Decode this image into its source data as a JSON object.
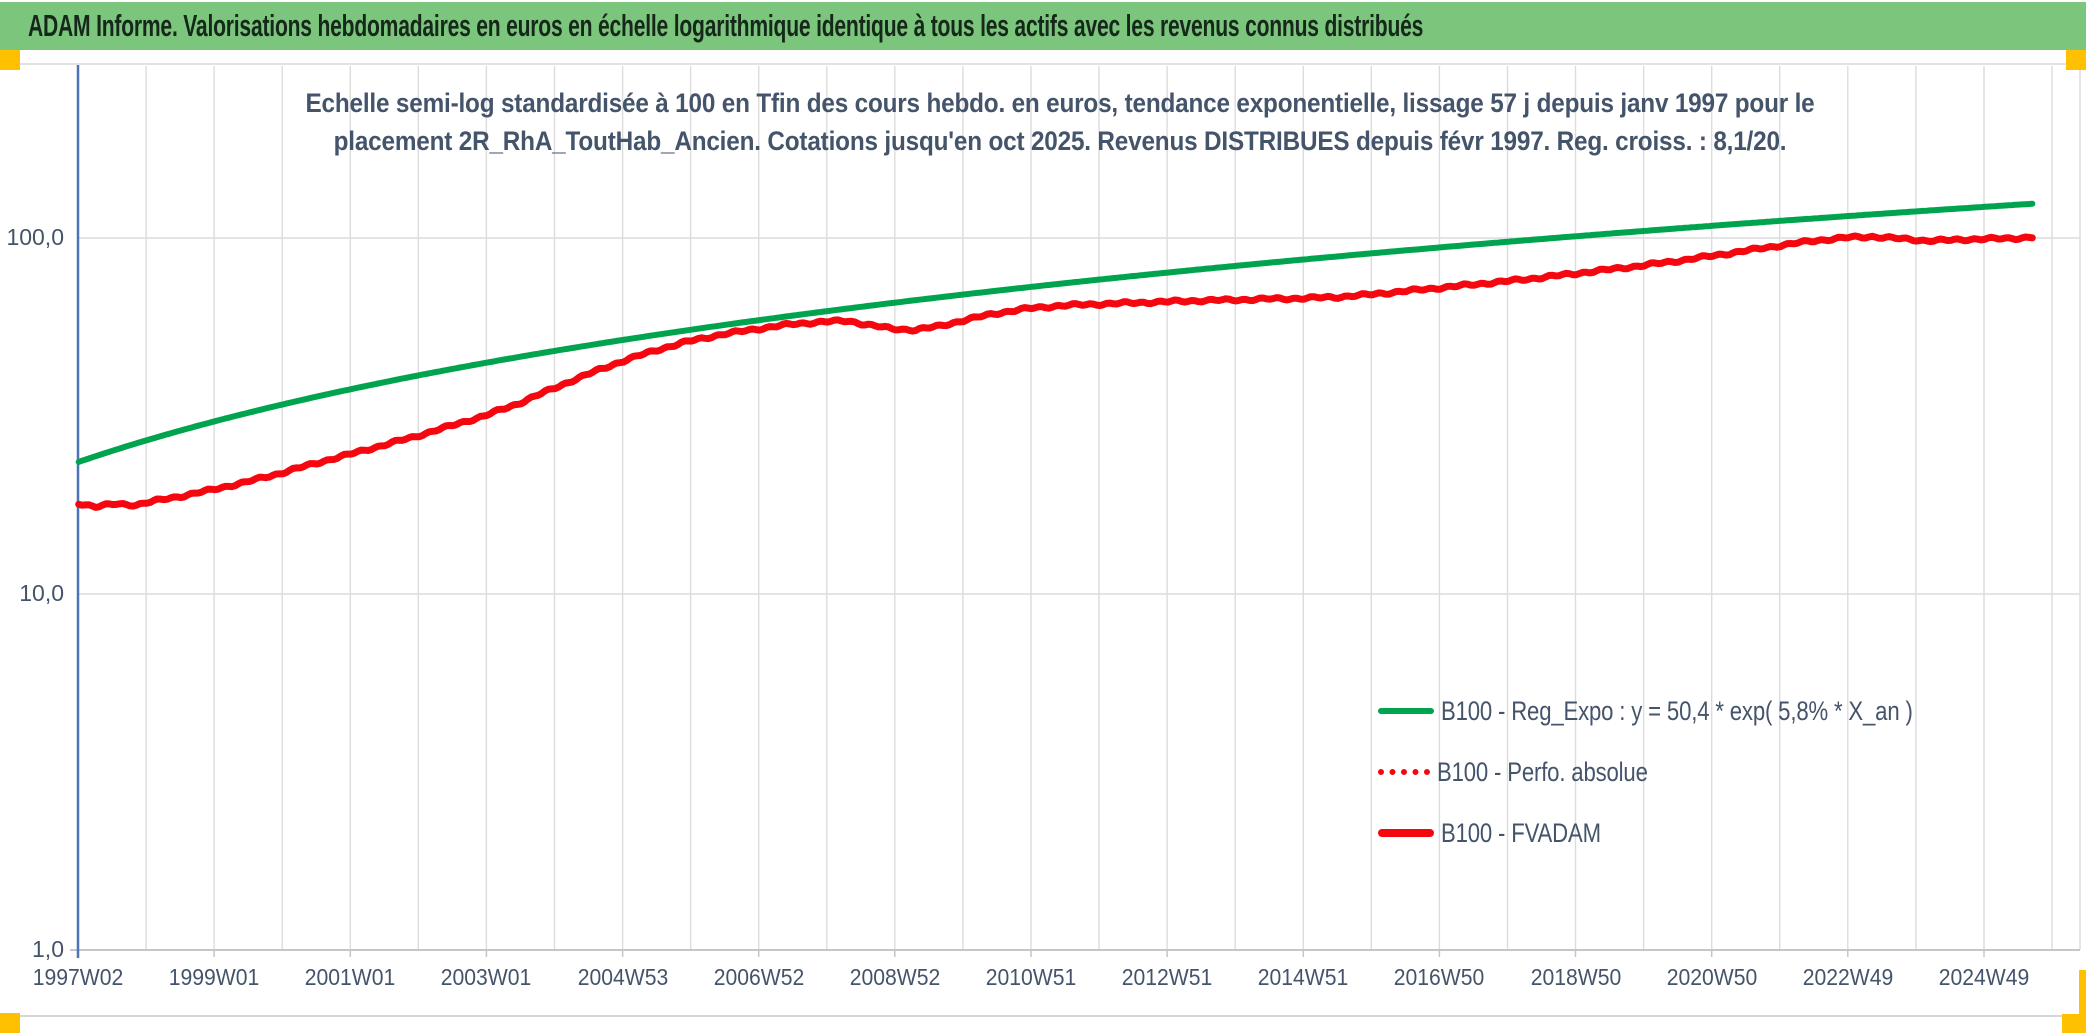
{
  "header": {
    "title": "ADAM Informe. Valorisations hebdomadaires en euros en échelle logarithmique identique à tous les actifs avec les revenus connus distribués"
  },
  "colors": {
    "header_bg": "#7CC57D",
    "accent_orange": "#FFC000",
    "text_navy": "#44546A",
    "green_series": "#00A44F",
    "red_series": "#F5070F",
    "grid": "#DCDCDC",
    "axis_blue": "#4C73B6",
    "axis_gray": "#C6C6C6"
  },
  "chart_data": {
    "type": "line",
    "subtitle_line1": "Echelle semi-log standardisée à 100 en Tfin des cours hebdo. en euros, tendance exponentielle, lissage 57 j depuis janv 1997 pour le",
    "subtitle_line2": "placement 2R_RhA_ToutHab_Ancien. Cotations jusqu'en oct 2025. Revenus DISTRIBUES depuis févr 1997. Reg. croiss. : 8,1/20.",
    "y_scale": "log",
    "ylim": [
      1,
      200
    ],
    "y_ticks": [
      {
        "label": "100,0",
        "value": 100
      },
      {
        "label": "10,0",
        "value": 10
      },
      {
        "label": "1,0",
        "value": 1
      }
    ],
    "x_tick_labels": [
      "1997W02",
      "1999W01",
      "2001W01",
      "2003W01",
      "2004W53",
      "2006W52",
      "2008W52",
      "2010W51",
      "2012W51",
      "2014W51",
      "2016W50",
      "2018W50",
      "2020W50",
      "2022W49",
      "2024W49"
    ],
    "x_range_years": [
      1997.04,
      2025.85
    ],
    "grid": "vertical-yearly-plus-decade-horizontals",
    "legend_position": "inside-right-lower",
    "series": [
      {
        "name": "B100 - Reg_Expo : y = 50,4 * exp( 5,8% *  X_an )",
        "color_key": "green",
        "style": "solid",
        "swatch": "green-solid",
        "width": 6,
        "points": [
          [
            1997.05,
            23.5
          ],
          [
            2025.75,
            124.8
          ]
        ]
      },
      {
        "name": "B100 - Perfo. absolue",
        "color_key": "red",
        "style": "dotted",
        "swatch": "red-dotted",
        "width": 5.5,
        "coincides_with": "B100 - FVADAM"
      },
      {
        "name": "B100 - FVADAM",
        "color_key": "red",
        "style": "solid",
        "swatch": "red-solid",
        "width": 7,
        "points": [
          [
            1997.05,
            18.0
          ],
          [
            1997.3,
            17.6
          ],
          [
            1997.6,
            17.9
          ],
          [
            1997.9,
            17.8
          ],
          [
            1998.2,
            18.3
          ],
          [
            1998.6,
            18.9
          ],
          [
            1999.0,
            19.6
          ],
          [
            1999.5,
            20.6
          ],
          [
            2000.0,
            21.8
          ],
          [
            2000.5,
            23.2
          ],
          [
            2001.0,
            24.6
          ],
          [
            2001.5,
            26.1
          ],
          [
            2002.0,
            27.7
          ],
          [
            2002.5,
            29.6
          ],
          [
            2003.0,
            31.6
          ],
          [
            2003.5,
            34.2
          ],
          [
            2004.0,
            37.6
          ],
          [
            2004.5,
            41.2
          ],
          [
            2005.0,
            44.8
          ],
          [
            2005.5,
            48.2
          ],
          [
            2006.0,
            51.2
          ],
          [
            2006.5,
            53.6
          ],
          [
            2007.0,
            55.5
          ],
          [
            2007.5,
            57.2
          ],
          [
            2008.0,
            58.2
          ],
          [
            2008.35,
            58.5
          ],
          [
            2008.7,
            56.8
          ],
          [
            2009.0,
            55.6
          ],
          [
            2009.35,
            55.2
          ],
          [
            2009.7,
            56.6
          ],
          [
            2010.0,
            58.4
          ],
          [
            2010.5,
            61.3
          ],
          [
            2011.0,
            63.4
          ],
          [
            2011.5,
            64.6
          ],
          [
            2012.0,
            65.2
          ],
          [
            2012.5,
            65.7
          ],
          [
            2013.0,
            66.2
          ],
          [
            2013.5,
            66.7
          ],
          [
            2014.0,
            67.0
          ],
          [
            2014.5,
            67.4
          ],
          [
            2015.0,
            67.7
          ],
          [
            2015.5,
            68.2
          ],
          [
            2016.0,
            69.3
          ],
          [
            2016.5,
            70.8
          ],
          [
            2017.0,
            72.3
          ],
          [
            2017.5,
            73.9
          ],
          [
            2018.0,
            75.5
          ],
          [
            2018.5,
            77.3
          ],
          [
            2019.0,
            79.3
          ],
          [
            2019.5,
            81.4
          ],
          [
            2020.0,
            83.6
          ],
          [
            2020.5,
            86.0
          ],
          [
            2021.0,
            88.8
          ],
          [
            2021.5,
            91.8
          ],
          [
            2022.0,
            95.0
          ],
          [
            2022.5,
            98.0
          ],
          [
            2023.0,
            100.2
          ],
          [
            2023.4,
            100.9
          ],
          [
            2023.8,
            99.6
          ],
          [
            2024.2,
            98.3
          ],
          [
            2024.5,
            98.5
          ],
          [
            2024.8,
            99.2
          ],
          [
            2025.2,
            99.5
          ],
          [
            2025.5,
            99.9
          ],
          [
            2025.75,
            100.5
          ]
        ]
      }
    ]
  }
}
